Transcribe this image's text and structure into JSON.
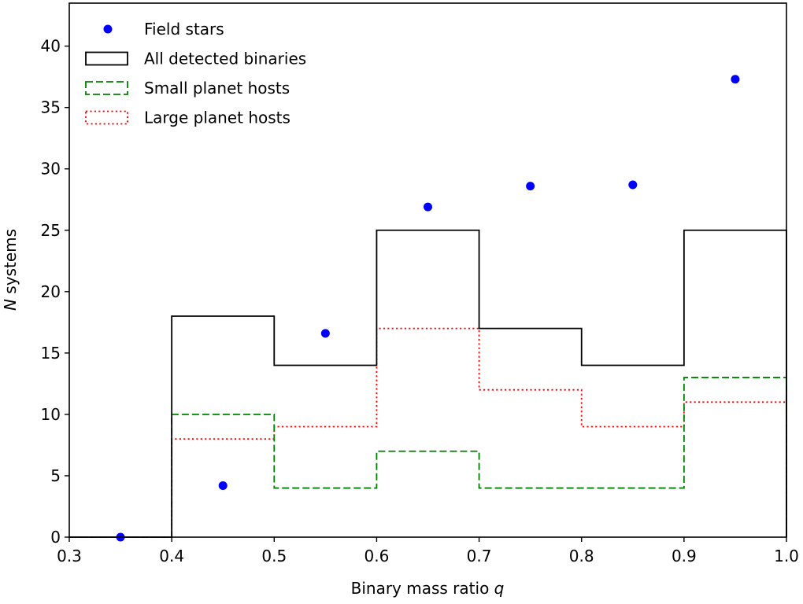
{
  "chart_data": {
    "type": "bar",
    "title": "",
    "xlabel": "Binary mass ratio",
    "xlabel_var": "q",
    "ylabel_var": "N",
    "ylabel": "systems",
    "xlim": [
      0.3,
      1.0
    ],
    "ylim": [
      0,
      43.5
    ],
    "xticks": [
      0.3,
      0.4,
      0.5,
      0.6,
      0.7,
      0.8,
      0.9,
      1.0
    ],
    "xtick_labels": [
      "0.3",
      "0.4",
      "0.5",
      "0.6",
      "0.7",
      "0.8",
      "0.9",
      "1.0"
    ],
    "yticks": [
      0,
      5,
      10,
      15,
      20,
      25,
      30,
      35,
      40
    ],
    "ytick_labels": [
      "0",
      "5",
      "10",
      "15",
      "20",
      "25",
      "30",
      "35",
      "40"
    ],
    "bin_edges": [
      0.3,
      0.4,
      0.5,
      0.6,
      0.7,
      0.8,
      0.9,
      1.0
    ],
    "grid": false,
    "legend_position": "top-left",
    "series": [
      {
        "name": "Field stars",
        "kind": "scatter",
        "color": "#0000ff",
        "x": [
          0.35,
          0.45,
          0.55,
          0.65,
          0.75,
          0.85,
          0.95
        ],
        "y": [
          0.0,
          4.2,
          16.6,
          26.9,
          28.6,
          28.7,
          37.3
        ]
      },
      {
        "name": "All detected binaries",
        "kind": "step",
        "color": "#000000",
        "dash": "solid",
        "values": [
          0,
          18,
          14,
          25,
          17,
          14,
          25
        ]
      },
      {
        "name": "Small planet hosts",
        "kind": "step",
        "color": "#008000",
        "dash": "dashed",
        "values": [
          0,
          10,
          4,
          7,
          4,
          4,
          13
        ]
      },
      {
        "name": "Large planet hosts",
        "kind": "step",
        "color": "#ff0000",
        "dash": "dotted",
        "values": [
          0,
          8,
          9,
          17,
          12,
          9,
          11
        ]
      }
    ]
  }
}
